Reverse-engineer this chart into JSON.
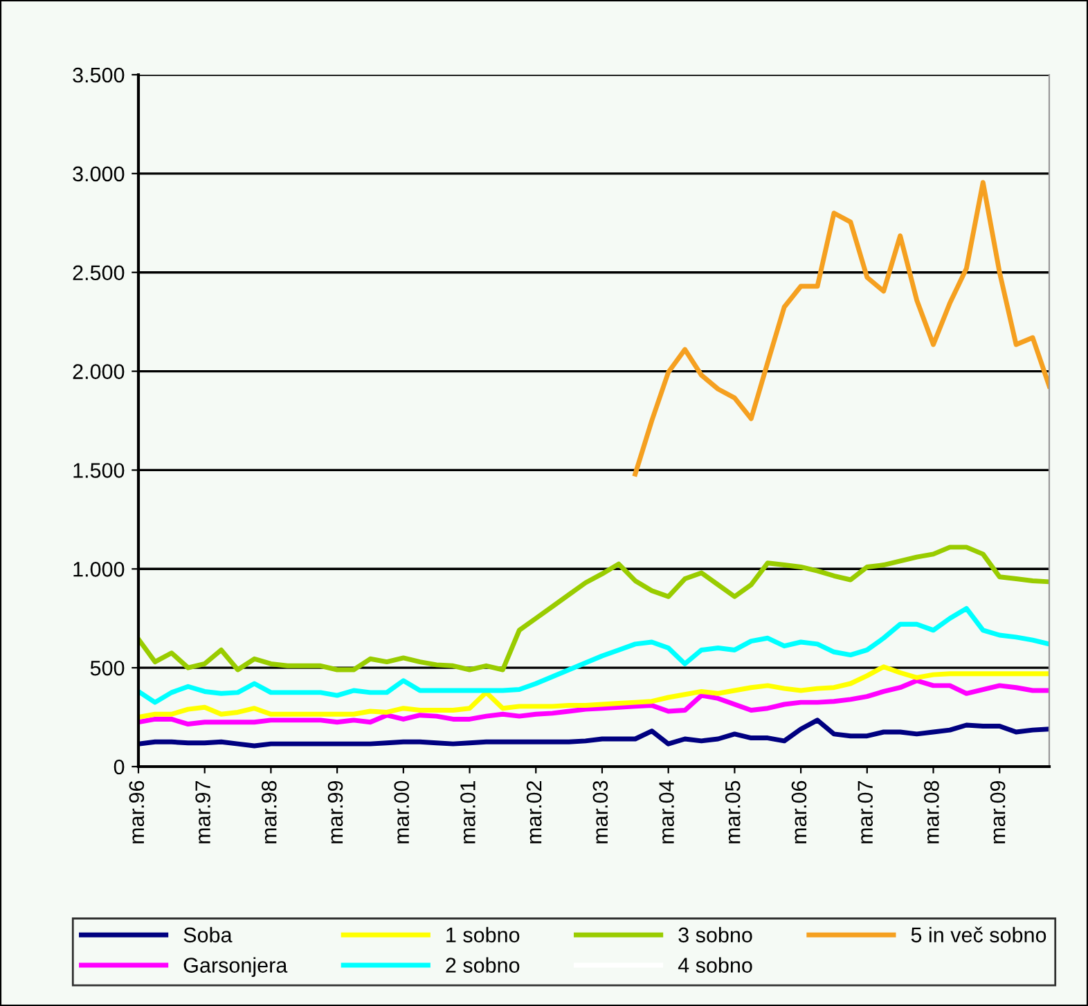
{
  "chart_data": {
    "type": "line",
    "categories": [
      "mar.96",
      null,
      null,
      null,
      "mar.97",
      null,
      null,
      null,
      "mar.98",
      null,
      null,
      null,
      "mar.99",
      null,
      null,
      null,
      "mar.00",
      null,
      null,
      null,
      "mar.01",
      null,
      null,
      null,
      "mar.02",
      null,
      null,
      null,
      "mar.03",
      null,
      null,
      null,
      "mar.04",
      null,
      null,
      null,
      "mar.05",
      null,
      null,
      null,
      "mar.06",
      null,
      null,
      null,
      "mar.07",
      null,
      null,
      null,
      "mar.08",
      null,
      null,
      null,
      "mar.09",
      null,
      null,
      null
    ],
    "series": [
      {
        "name": "Soba",
        "color": "#000080",
        "values": [
          115,
          125,
          125,
          120,
          120,
          125,
          115,
          105,
          115,
          115,
          115,
          115,
          115,
          115,
          115,
          120,
          125,
          125,
          120,
          115,
          120,
          125,
          125,
          125,
          125,
          125,
          125,
          130,
          140,
          140,
          140,
          180,
          115,
          140,
          130,
          140,
          165,
          145,
          145,
          130,
          190,
          235,
          165,
          155,
          155,
          175,
          175,
          165,
          175,
          185,
          210,
          205,
          205,
          175,
          185,
          190
        ]
      },
      {
        "name": "Garsonjera",
        "color": "#ff00ff",
        "values": [
          225,
          240,
          240,
          215,
          225,
          225,
          225,
          225,
          235,
          235,
          235,
          235,
          225,
          235,
          225,
          260,
          240,
          260,
          255,
          240,
          240,
          255,
          265,
          255,
          265,
          270,
          280,
          290,
          295,
          300,
          305,
          310,
          280,
          285,
          360,
          345,
          315,
          285,
          295,
          315,
          325,
          325,
          330,
          340,
          355,
          380,
          400,
          435,
          410,
          410,
          370,
          390,
          410,
          400,
          385,
          385
        ]
      },
      {
        "name": "1 sobno",
        "color": "#ffff00",
        "values": [
          250,
          265,
          265,
          290,
          300,
          265,
          275,
          295,
          265,
          265,
          265,
          265,
          265,
          265,
          280,
          275,
          295,
          285,
          285,
          285,
          295,
          375,
          295,
          305,
          305,
          305,
          310,
          310,
          315,
          320,
          325,
          330,
          350,
          365,
          380,
          370,
          385,
          400,
          410,
          395,
          385,
          395,
          400,
          420,
          460,
          505,
          475,
          450,
          465,
          470,
          470,
          470,
          470,
          470,
          470,
          470
        ]
      },
      {
        "name": "2 sobno",
        "color": "#00ffff",
        "values": [
          380,
          325,
          375,
          405,
          380,
          370,
          375,
          420,
          375,
          375,
          375,
          375,
          360,
          385,
          375,
          375,
          435,
          385,
          385,
          385,
          385,
          385,
          385,
          390,
          420,
          455,
          490,
          525,
          560,
          590,
          620,
          630,
          600,
          520,
          590,
          600,
          590,
          635,
          650,
          610,
          630,
          620,
          580,
          565,
          590,
          650,
          720,
          720,
          690,
          750,
          800,
          690,
          665,
          655,
          640,
          620
        ]
      },
      {
        "name": "3 sobno",
        "color": "#99cc00",
        "values": [
          645,
          530,
          575,
          500,
          520,
          590,
          490,
          545,
          520,
          510,
          510,
          510,
          490,
          490,
          545,
          530,
          550,
          530,
          515,
          510,
          490,
          510,
          490,
          690,
          750,
          810,
          870,
          930,
          975,
          1025,
          940,
          890,
          860,
          950,
          980,
          920,
          860,
          920,
          1030,
          1020,
          1010,
          990,
          965,
          945,
          1010,
          1020,
          1040,
          1060,
          1075,
          1110,
          1110,
          1075,
          960,
          950,
          940,
          935
        ]
      },
      {
        "name": "4 sobno",
        "color": "#ffffff",
        "values": [
          null,
          null,
          null,
          null,
          null,
          null,
          null,
          null,
          null,
          null,
          null,
          null,
          null,
          null,
          null,
          null,
          null,
          null,
          null,
          null,
          null,
          null,
          null,
          null,
          null,
          null,
          null,
          null,
          null,
          null,
          null,
          null,
          null,
          null,
          null,
          null,
          null,
          null,
          null,
          null,
          null,
          null,
          null,
          null,
          null,
          null,
          null,
          null,
          null,
          null,
          null,
          null,
          null,
          null,
          null,
          null
        ]
      },
      {
        "name": "5 in več sobno",
        "color": "#f5a020",
        "values": [
          null,
          null,
          null,
          null,
          null,
          null,
          null,
          null,
          null,
          null,
          null,
          null,
          null,
          null,
          null,
          null,
          null,
          null,
          null,
          null,
          null,
          null,
          null,
          null,
          null,
          null,
          null,
          null,
          null,
          null,
          1480,
          1750,
          1995,
          2110,
          1980,
          1910,
          1865,
          1760,
          2045,
          2325,
          2430,
          2430,
          2800,
          2755,
          2475,
          2405,
          2685,
          2360,
          2135,
          2345,
          2520,
          2955,
          2500,
          2135,
          2170,
          1925
        ]
      }
    ],
    "ylim": [
      0,
      3500
    ],
    "yticks": [
      0,
      500,
      {
        "value": 1000,
        "label": "1.000"
      },
      {
        "value": 1500,
        "label": "1.500"
      },
      {
        "value": 2000,
        "label": "2.000"
      },
      {
        "value": 2500,
        "label": "2.500"
      },
      {
        "value": 3000,
        "label": "3.000"
      },
      {
        "value": 3500,
        "label": "3.500"
      }
    ],
    "grid": "y",
    "legend": "bottom",
    "marker": "none",
    "line_style": "solid"
  }
}
